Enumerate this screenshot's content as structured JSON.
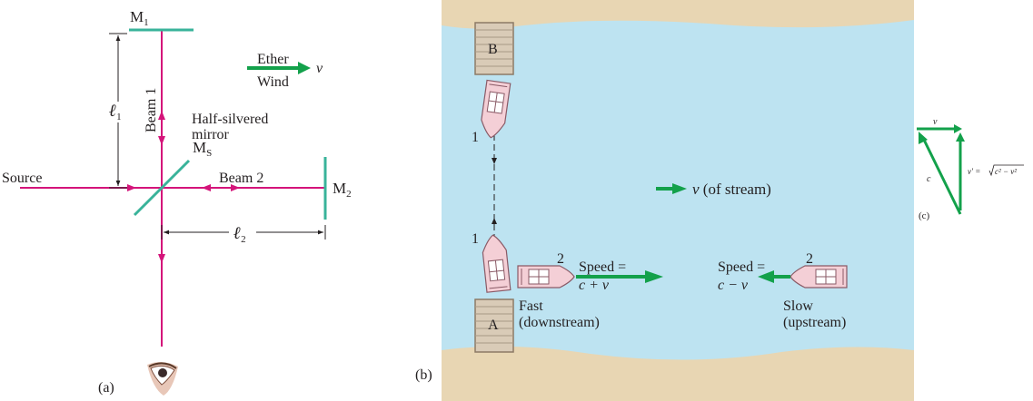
{
  "colors": {
    "beam": "#d4147a",
    "mirror": "#39b39a",
    "arrow_green": "#13a14b",
    "water": "#bde3f1",
    "bank": "#e8d6b3",
    "dock": "#d9cbb7",
    "boat": "#f4cfd6",
    "text": "#231f20"
  },
  "panel_a": {
    "label": "(a)",
    "m1": "M",
    "m1_sub": "1",
    "m2": "M",
    "m2_sub": "2",
    "ms": "M",
    "ms_sub": "S",
    "source": "Source",
    "beam1": "Beam 1",
    "beam2": "Beam 2",
    "mirror_label_1": "Half-silvered",
    "mirror_label_2": "mirror",
    "l1": "ℓ",
    "l1_sub": "1",
    "l2": "ℓ",
    "l2_sub": "2",
    "ether_1": "Ether",
    "ether_2": "Wind",
    "v": "v",
    "eye_icon": "eye-icon"
  },
  "panel_b": {
    "label": "(b)",
    "dock_a": "A",
    "dock_b": "B",
    "boat1_top": "1",
    "boat1_bottom": "1",
    "boat2_left": "2",
    "boat2_right": "2",
    "stream_v": "v",
    "stream_rest": "(of stream)",
    "speed_fast": "Speed =",
    "speed_fast_expr": "c + v",
    "speed_slow": "Speed =",
    "speed_slow_expr": "c − v",
    "fast_1": "Fast",
    "fast_2": "(downstream)",
    "slow_1": "Slow",
    "slow_2": "(upstream)"
  },
  "panel_c": {
    "label": "(c)",
    "v": "v",
    "c": "c",
    "vprime": "v′ = ",
    "sqrt_expr": "c² − v²"
  }
}
